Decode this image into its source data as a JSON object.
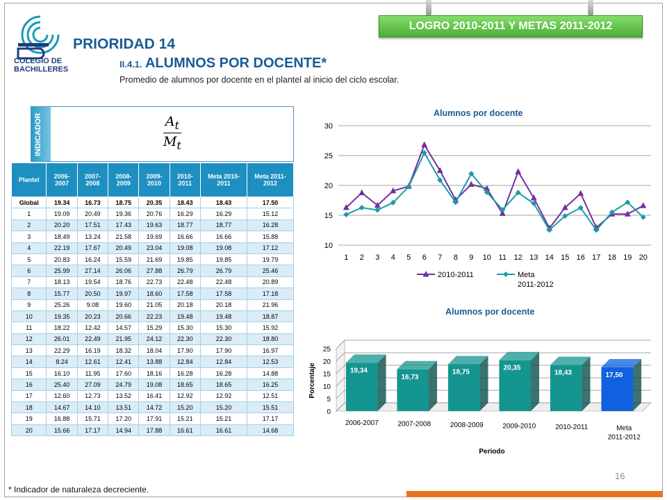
{
  "banner": {
    "text": "LOGRO 2010-2011 Y METAS 2011-2012"
  },
  "logo": {
    "line1": "COLEGIO DE",
    "line2": "BACHILLERES"
  },
  "header": {
    "priority": "PRIORIDAD 14",
    "section_num": "II.4.1.",
    "section_title": "ALUMNOS POR DOCENTE*",
    "description": "Promedio de alumnos por docente en el plantel al inicio del ciclo escolar."
  },
  "indicator": {
    "label": "INDICADOR",
    "numerator": "A",
    "numerator_sub": "t",
    "denominator": "M",
    "denominator_sub": "t"
  },
  "table": {
    "headers": [
      "Plantel",
      "2006-2007",
      "2007-2008",
      "2008-2009",
      "2009-2010",
      "2010-2011",
      "Meta 2010-2011",
      "Meta 2011-2012"
    ],
    "rows": [
      [
        "Global",
        "19.34",
        "16.73",
        "18.75",
        "20.35",
        "18.43",
        "18.43",
        "17.50"
      ],
      [
        "1",
        "19.09",
        "20.49",
        "19.36",
        "20.76",
        "16.29",
        "16.29",
        "15.12"
      ],
      [
        "2",
        "20.20",
        "17.51",
        "17.43",
        "19.63",
        "18.77",
        "18.77",
        "16.28"
      ],
      [
        "3",
        "18.49",
        "13.24",
        "21.58",
        "19.69",
        "16.66",
        "16.66",
        "15.88"
      ],
      [
        "4",
        "22.19",
        "17.67",
        "20.49",
        "23.04",
        "19.08",
        "19.08",
        "17.12"
      ],
      [
        "5",
        "20.83",
        "16.24",
        "15.59",
        "21.69",
        "19.85",
        "19.85",
        "19.79"
      ],
      [
        "6",
        "25.99",
        "27.14",
        "26.06",
        "27.88",
        "26.79",
        "26.79",
        "25.46"
      ],
      [
        "7",
        "18.13",
        "19.54",
        "18.76",
        "22.73",
        "22.48",
        "22.48",
        "20.89"
      ],
      [
        "8",
        "15.77",
        "20.50",
        "19.97",
        "18.60",
        "17.58",
        "17.58",
        "17.18"
      ],
      [
        "9",
        "25.26",
        "9.08",
        "19.60",
        "21.05",
        "20.18",
        "20.18",
        "21.96"
      ],
      [
        "10",
        "19.35",
        "20.23",
        "20.66",
        "22.23",
        "19.48",
        "19.48",
        "18.87"
      ],
      [
        "11",
        "18.22",
        "12.42",
        "14.57",
        "15.29",
        "15.30",
        "15.30",
        "15.92"
      ],
      [
        "12",
        "26.01",
        "22.49",
        "21.95",
        "24.12",
        "22.30",
        "22.30",
        "18.80"
      ],
      [
        "13",
        "22.29",
        "16.19",
        "18.32",
        "18.04",
        "17.90",
        "17.90",
        "16.97"
      ],
      [
        "14",
        "8.24",
        "12.61",
        "12.41",
        "13.88",
        "12.84",
        "12.84",
        "12.53"
      ],
      [
        "15",
        "16.10",
        "11.95",
        "17.60",
        "18.16",
        "16.28",
        "16.28",
        "14.88"
      ],
      [
        "16",
        "25.40",
        "27.09",
        "24.79",
        "19.08",
        "18.65",
        "18.65",
        "16.25"
      ],
      [
        "17",
        "12.60",
        "12.73",
        "13.52",
        "16.41",
        "12.92",
        "12.92",
        "12.51"
      ],
      [
        "18",
        "14.67",
        "14.10",
        "13.51",
        "14.72",
        "15.20",
        "15.20",
        "15.51"
      ],
      [
        "19",
        "16.88",
        "15.71",
        "17.20",
        "17.91",
        "15.21",
        "15.21",
        "17.17"
      ],
      [
        "20",
        "15.66",
        "17.17",
        "14.94",
        "17.88",
        "16.61",
        "16.61",
        "14.68"
      ]
    ]
  },
  "chart_data": [
    {
      "type": "line",
      "title": "Alumnos por docente",
      "x": [
        "1",
        "2",
        "3",
        "4",
        "5",
        "6",
        "7",
        "8",
        "9",
        "10",
        "11",
        "12",
        "13",
        "14",
        "15",
        "16",
        "17",
        "18",
        "19",
        "20"
      ],
      "ylim": [
        10,
        30
      ],
      "yticks": [
        10,
        15,
        20,
        25,
        30
      ],
      "grid": true,
      "legend": "bottom",
      "series": [
        {
          "name": "2010-2011",
          "color": "#7030a0",
          "marker": "triangle",
          "values": [
            16.29,
            18.77,
            16.66,
            19.08,
            19.85,
            26.79,
            22.48,
            17.58,
            20.18,
            19.48,
            15.3,
            22.3,
            17.9,
            12.84,
            16.28,
            18.65,
            12.92,
            15.2,
            15.21,
            16.61
          ]
        },
        {
          "name": "Meta 2011-2012",
          "color": "#1c9aa6",
          "marker": "diamond",
          "values": [
            15.12,
            16.28,
            15.88,
            17.12,
            19.79,
            25.46,
            20.89,
            17.18,
            21.96,
            18.87,
            15.92,
            18.8,
            16.97,
            12.53,
            14.88,
            16.25,
            12.51,
            15.51,
            17.17,
            14.68
          ]
        }
      ]
    },
    {
      "type": "bar",
      "title": "Alumnos por docente",
      "categories": [
        "2006-2007",
        "2007-2008",
        "2008-2009",
        "2009-2010",
        "2010-2011",
        "Meta 2011-2012"
      ],
      "values": [
        19.34,
        16.73,
        18.75,
        20.35,
        18.43,
        17.5
      ],
      "labels": [
        "19,34",
        "16,73",
        "18,75",
        "20,35",
        "18,43",
        "17,50"
      ],
      "colors": [
        "#14958f",
        "#14958f",
        "#14958f",
        "#14958f",
        "#14958f",
        "#1060e0"
      ],
      "xlabel": "Periodo",
      "ylabel": "Porcentaje",
      "ylim": [
        0,
        25
      ],
      "yticks": [
        0,
        5,
        10,
        15,
        20,
        25
      ],
      "grid": true
    }
  ],
  "footer": {
    "note": "* Indicador de naturaleza decreciente.",
    "page": "16"
  }
}
